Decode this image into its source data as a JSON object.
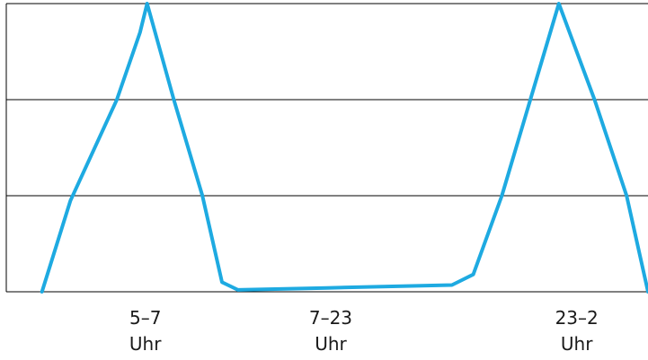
{
  "chart_data": {
    "type": "line",
    "title": "",
    "xlabel": "",
    "ylabel": "",
    "grid": true,
    "ylim": [
      0,
      3
    ],
    "xlim": [
      0,
      18
    ],
    "categories": [
      {
        "x": 3.9,
        "lines": [
          "5–7",
          "Uhr"
        ]
      },
      {
        "x": 9.1,
        "lines": [
          "7–23",
          "Uhr"
        ]
      },
      {
        "x": 16.0,
        "lines": [
          "23–2",
          "Uhr"
        ]
      }
    ],
    "series": [
      {
        "color": "#1eaae1",
        "points": [
          [
            1.0,
            0.0
          ],
          [
            1.8,
            0.95
          ],
          [
            3.1,
            2.0
          ],
          [
            3.75,
            2.7
          ],
          [
            3.95,
            3.0
          ],
          [
            4.7,
            2.0
          ],
          [
            5.5,
            1.0
          ],
          [
            6.05,
            0.1
          ],
          [
            6.5,
            0.02
          ],
          [
            9.0,
            0.04
          ],
          [
            12.5,
            0.07
          ],
          [
            13.1,
            0.18
          ],
          [
            13.9,
            1.0
          ],
          [
            14.7,
            2.0
          ],
          [
            15.5,
            3.0
          ],
          [
            16.5,
            2.0
          ],
          [
            17.4,
            1.0
          ],
          [
            18.0,
            0.0
          ]
        ]
      }
    ]
  }
}
